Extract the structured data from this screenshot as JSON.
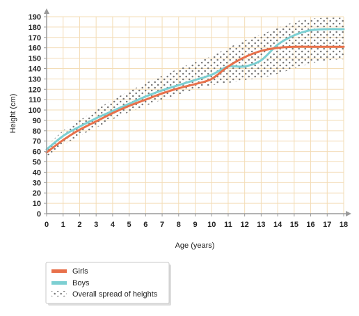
{
  "chart_data": {
    "type": "line",
    "xlabel": "Age (years)",
    "ylabel": "Height (cm)",
    "xlim": [
      0,
      18
    ],
    "ylim": [
      0,
      190
    ],
    "x_ticks": [
      0,
      1,
      2,
      3,
      4,
      5,
      6,
      7,
      8,
      9,
      10,
      11,
      12,
      13,
      14,
      15,
      16,
      17,
      18
    ],
    "y_ticks": [
      0,
      10,
      20,
      30,
      40,
      50,
      60,
      70,
      80,
      90,
      100,
      110,
      120,
      130,
      140,
      150,
      160,
      170,
      180,
      190
    ],
    "grid": true,
    "legend_position": "bottom-left",
    "series": [
      {
        "name": "Girls",
        "color": "#e8704a",
        "x": [
          0,
          1,
          2,
          3,
          4,
          5,
          6,
          7,
          8,
          9,
          10,
          11,
          12,
          13,
          14,
          15,
          16,
          17,
          18
        ],
        "values": [
          59,
          71,
          81,
          89,
          97,
          104,
          110,
          116,
          121,
          125,
          130,
          142,
          151,
          157,
          160,
          161,
          161,
          161,
          161
        ]
      },
      {
        "name": "Boys",
        "color": "#7ccfd2",
        "x": [
          0,
          1,
          2,
          3,
          4,
          5,
          6,
          7,
          8,
          9,
          10,
          11,
          12,
          13,
          14,
          15,
          16,
          17,
          18
        ],
        "values": [
          62,
          75,
          84,
          92,
          99,
          106,
          113,
          119,
          124,
          129,
          134,
          142,
          142,
          148,
          163,
          172,
          177,
          178,
          178
        ]
      }
    ],
    "spread": {
      "name": "Overall spread of heights",
      "color": "#777777",
      "x": [
        0,
        1,
        2,
        3,
        4,
        5,
        6,
        7,
        8,
        9,
        10,
        11,
        12,
        13,
        14,
        15,
        16,
        17,
        18
      ],
      "upper": [
        65,
        80,
        90,
        100,
        110,
        118,
        126,
        133,
        140,
        146,
        152,
        160,
        167,
        173,
        179,
        185,
        188,
        189,
        189
      ],
      "lower": [
        55,
        66,
        75,
        83,
        91,
        98,
        104,
        110,
        115,
        120,
        124,
        126,
        129,
        131,
        135,
        140,
        145,
        148,
        149
      ]
    }
  }
}
